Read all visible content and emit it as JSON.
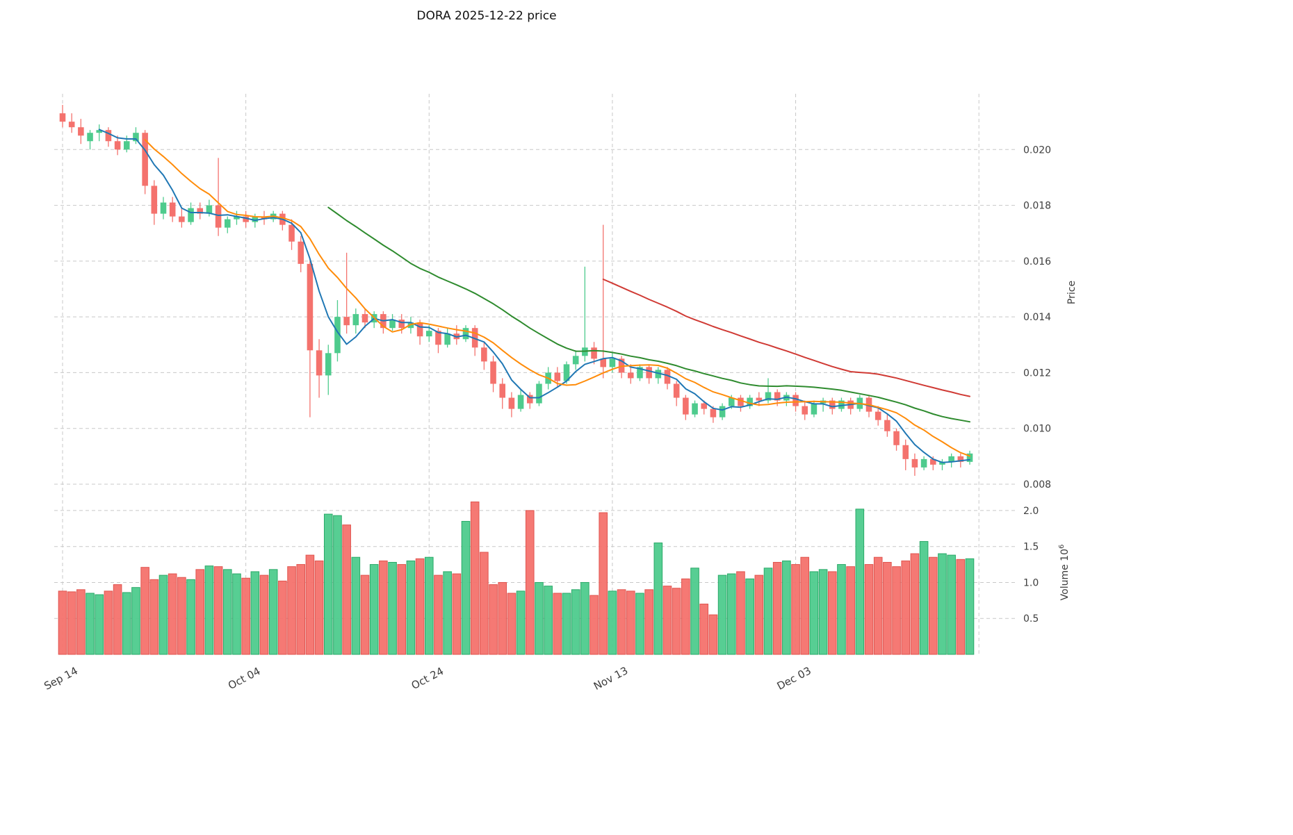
{
  "axes": {
    "price_label": "Price",
    "volume_label_prefix": "Volume  10",
    "volume_exp": "6"
  },
  "chart_data": {
    "type": "candlestick",
    "symbol": "DORA",
    "as_of_date": "2025-12-22",
    "title": "DORA  2025-12-22  price",
    "ylabel": "Price",
    "ylabel_volume": "Volume 10^6",
    "grid": true,
    "legend_position": "none",
    "price_ticks": [
      0.02,
      0.018,
      0.016,
      0.014,
      0.012,
      0.01,
      0.008
    ],
    "volume_ticks": [
      2.0,
      1.5,
      1.0,
      0.5
    ],
    "x_ticks": [
      {
        "i": 0,
        "label": "Sep 14"
      },
      {
        "i": 20,
        "label": "Oct 04"
      },
      {
        "i": 40,
        "label": "Oct 24"
      },
      {
        "i": 60,
        "label": "Nov 13"
      },
      {
        "i": 80,
        "label": "Dec 03"
      },
      {
        "i": 100,
        "label": ""
      }
    ],
    "price_range": [
      0.00785,
      0.022
    ],
    "volume_range": [
      0,
      2.26
    ],
    "volume_unit": "1e6",
    "moving_averages": [
      {
        "window": 5,
        "color": "#1f77b4"
      },
      {
        "window": 10,
        "color": "#ff8c0a"
      },
      {
        "window": 30,
        "color": "#2e8b2e"
      },
      {
        "window": 60,
        "color": "#d03a34"
      }
    ],
    "colors": {
      "up": "#4ecb8d",
      "down": "#f4726d",
      "up_edge": "#2aa968",
      "down_edge": "#e0544e",
      "grid": "#c8c8c8",
      "tick_label": "#3d3d3d"
    },
    "candles": [
      [
        0.0213,
        0.0216,
        0.0208,
        0.021
      ],
      [
        0.021,
        0.0213,
        0.0206,
        0.0208
      ],
      [
        0.0208,
        0.0211,
        0.0202,
        0.0205
      ],
      [
        0.0203,
        0.0207,
        0.02,
        0.0206
      ],
      [
        0.0206,
        0.0209,
        0.0203,
        0.0207
      ],
      [
        0.0207,
        0.0208,
        0.0201,
        0.0203
      ],
      [
        0.0203,
        0.0205,
        0.0198,
        0.02
      ],
      [
        0.02,
        0.0205,
        0.0199,
        0.0203
      ],
      [
        0.0203,
        0.0208,
        0.0202,
        0.0206
      ],
      [
        0.0206,
        0.0207,
        0.0184,
        0.0187
      ],
      [
        0.0187,
        0.0189,
        0.0173,
        0.0177
      ],
      [
        0.0177,
        0.0183,
        0.0175,
        0.0181
      ],
      [
        0.0181,
        0.0183,
        0.0174,
        0.0176
      ],
      [
        0.0176,
        0.0179,
        0.0172,
        0.0174
      ],
      [
        0.0174,
        0.0181,
        0.0173,
        0.0179
      ],
      [
        0.0179,
        0.0181,
        0.0175,
        0.0177
      ],
      [
        0.0177,
        0.0182,
        0.0176,
        0.018
      ],
      [
        0.018,
        0.0197,
        0.0169,
        0.0172
      ],
      [
        0.0172,
        0.0176,
        0.017,
        0.0175
      ],
      [
        0.0175,
        0.0178,
        0.0173,
        0.0176
      ],
      [
        0.0176,
        0.0178,
        0.0172,
        0.0174
      ],
      [
        0.0174,
        0.0177,
        0.0172,
        0.0176
      ],
      [
        0.0176,
        0.0178,
        0.0173,
        0.0175
      ],
      [
        0.0175,
        0.0178,
        0.0174,
        0.0177
      ],
      [
        0.0177,
        0.0178,
        0.0171,
        0.0173
      ],
      [
        0.0173,
        0.0175,
        0.0164,
        0.0167
      ],
      [
        0.0167,
        0.0169,
        0.0156,
        0.0159
      ],
      [
        0.0159,
        0.0161,
        0.0104,
        0.0128
      ],
      [
        0.0128,
        0.0132,
        0.0111,
        0.0119
      ],
      [
        0.0119,
        0.013,
        0.0112,
        0.0127
      ],
      [
        0.0127,
        0.0146,
        0.0124,
        0.014
      ],
      [
        0.014,
        0.0163,
        0.0134,
        0.0137
      ],
      [
        0.0137,
        0.0143,
        0.0134,
        0.0141
      ],
      [
        0.0141,
        0.0143,
        0.0136,
        0.0138
      ],
      [
        0.0138,
        0.0142,
        0.0136,
        0.0141
      ],
      [
        0.0141,
        0.0142,
        0.0134,
        0.0136
      ],
      [
        0.0136,
        0.0141,
        0.0135,
        0.0139
      ],
      [
        0.0139,
        0.0141,
        0.0134,
        0.0136
      ],
      [
        0.0136,
        0.014,
        0.0134,
        0.0138
      ],
      [
        0.0138,
        0.0139,
        0.013,
        0.0133
      ],
      [
        0.0133,
        0.0137,
        0.0131,
        0.0135
      ],
      [
        0.0135,
        0.0136,
        0.0127,
        0.013
      ],
      [
        0.013,
        0.0136,
        0.0129,
        0.0134
      ],
      [
        0.0134,
        0.0137,
        0.013,
        0.0132
      ],
      [
        0.0132,
        0.0137,
        0.0131,
        0.0136
      ],
      [
        0.0136,
        0.0137,
        0.0126,
        0.0129
      ],
      [
        0.0129,
        0.0131,
        0.0121,
        0.0124
      ],
      [
        0.0124,
        0.0126,
        0.0113,
        0.0116
      ],
      [
        0.0116,
        0.0118,
        0.0107,
        0.0111
      ],
      [
        0.0111,
        0.0113,
        0.0104,
        0.0107
      ],
      [
        0.0107,
        0.0114,
        0.0106,
        0.0112
      ],
      [
        0.0112,
        0.0113,
        0.0107,
        0.0109
      ],
      [
        0.0109,
        0.0117,
        0.0108,
        0.0116
      ],
      [
        0.0116,
        0.0122,
        0.0114,
        0.012
      ],
      [
        0.012,
        0.0122,
        0.0115,
        0.0117
      ],
      [
        0.0117,
        0.0124,
        0.0116,
        0.0123
      ],
      [
        0.0123,
        0.0128,
        0.0121,
        0.0126
      ],
      [
        0.0126,
        0.0158,
        0.0124,
        0.0129
      ],
      [
        0.0129,
        0.0131,
        0.0123,
        0.0125
      ],
      [
        0.0125,
        0.0173,
        0.0118,
        0.0122
      ],
      [
        0.0122,
        0.0127,
        0.012,
        0.0125
      ],
      [
        0.0125,
        0.0126,
        0.0118,
        0.012
      ],
      [
        0.012,
        0.0123,
        0.0116,
        0.0118
      ],
      [
        0.0118,
        0.0123,
        0.0117,
        0.0122
      ],
      [
        0.0122,
        0.0123,
        0.0116,
        0.0118
      ],
      [
        0.0118,
        0.0122,
        0.0116,
        0.0121
      ],
      [
        0.0121,
        0.0122,
        0.0114,
        0.0116
      ],
      [
        0.0116,
        0.0117,
        0.0108,
        0.0111
      ],
      [
        0.0111,
        0.0112,
        0.0103,
        0.0105
      ],
      [
        0.0105,
        0.011,
        0.0104,
        0.0109
      ],
      [
        0.0109,
        0.011,
        0.0105,
        0.0107
      ],
      [
        0.0107,
        0.0108,
        0.0102,
        0.0104
      ],
      [
        0.0104,
        0.0109,
        0.0103,
        0.0108
      ],
      [
        0.0108,
        0.0112,
        0.0107,
        0.0111
      ],
      [
        0.0111,
        0.0112,
        0.0106,
        0.0108
      ],
      [
        0.0108,
        0.0112,
        0.0107,
        0.0111
      ],
      [
        0.0111,
        0.0113,
        0.0108,
        0.011
      ],
      [
        0.011,
        0.0118,
        0.0109,
        0.0113
      ],
      [
        0.0113,
        0.0114,
        0.0108,
        0.011
      ],
      [
        0.011,
        0.0113,
        0.0108,
        0.0112
      ],
      [
        0.0112,
        0.0113,
        0.0106,
        0.0108
      ],
      [
        0.0108,
        0.011,
        0.0103,
        0.0105
      ],
      [
        0.0105,
        0.011,
        0.0104,
        0.0109
      ],
      [
        0.0109,
        0.0111,
        0.0106,
        0.011
      ],
      [
        0.011,
        0.0111,
        0.0105,
        0.0107
      ],
      [
        0.0107,
        0.0111,
        0.0106,
        0.011
      ],
      [
        0.011,
        0.0111,
        0.0105,
        0.0107
      ],
      [
        0.0107,
        0.0112,
        0.0106,
        0.0111
      ],
      [
        0.0111,
        0.0112,
        0.0104,
        0.0106
      ],
      [
        0.0106,
        0.0108,
        0.0101,
        0.0103
      ],
      [
        0.0103,
        0.0105,
        0.0097,
        0.0099
      ],
      [
        0.0099,
        0.01,
        0.0092,
        0.0094
      ],
      [
        0.0094,
        0.0096,
        0.0085,
        0.0089
      ],
      [
        0.0089,
        0.0091,
        0.0083,
        0.0086
      ],
      [
        0.0086,
        0.009,
        0.0085,
        0.0089
      ],
      [
        0.0089,
        0.009,
        0.0085,
        0.0087
      ],
      [
        0.0087,
        0.0089,
        0.0085,
        0.0088
      ],
      [
        0.0088,
        0.0091,
        0.0086,
        0.009
      ],
      [
        0.009,
        0.0091,
        0.0086,
        0.0088
      ],
      [
        0.0088,
        0.0092,
        0.0087,
        0.0091
      ]
    ],
    "volumes": [
      0.88,
      0.87,
      0.9,
      0.85,
      0.83,
      0.88,
      0.97,
      0.86,
      0.93,
      1.21,
      1.04,
      1.1,
      1.12,
      1.07,
      1.04,
      1.18,
      1.23,
      1.22,
      1.18,
      1.12,
      1.06,
      1.15,
      1.1,
      1.18,
      1.02,
      1.22,
      1.25,
      1.38,
      1.3,
      1.95,
      1.93,
      1.8,
      1.35,
      1.1,
      1.25,
      1.3,
      1.28,
      1.25,
      1.3,
      1.33,
      1.35,
      1.1,
      1.15,
      1.12,
      1.85,
      2.12,
      1.42,
      0.97,
      1.0,
      0.85,
      0.88,
      2.0,
      1.0,
      0.95,
      0.85,
      0.85,
      0.9,
      1.0,
      0.82,
      1.97,
      0.88,
      0.9,
      0.88,
      0.85,
      0.9,
      1.55,
      0.95,
      0.92,
      1.05,
      1.2,
      0.7,
      0.55,
      1.1,
      1.12,
      1.15,
      1.05,
      1.1,
      1.2,
      1.28,
      1.3,
      1.25,
      1.35,
      1.15,
      1.18,
      1.15,
      1.25,
      1.22,
      2.02,
      1.25,
      1.35,
      1.28,
      1.22,
      1.3,
      1.4,
      1.57,
      1.35,
      1.4,
      1.38,
      1.32,
      1.33
    ]
  }
}
